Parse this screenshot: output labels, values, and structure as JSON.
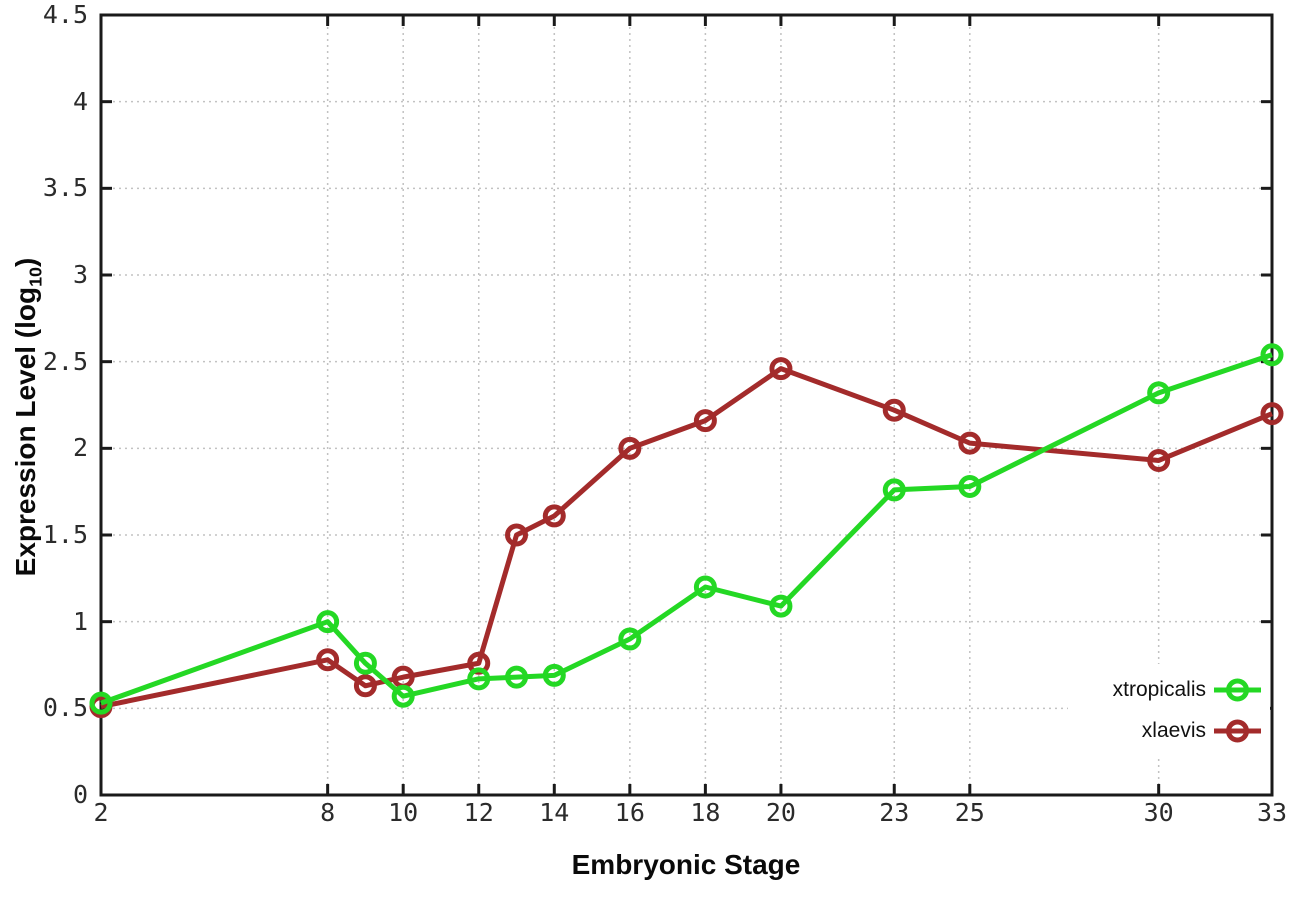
{
  "labels": {
    "ylabel_main": "Expression Level (log",
    "ylabel_sub": "10",
    "ylabel_close": ")"
  },
  "chart_data": {
    "type": "line",
    "title": "",
    "xlabel": "Embryonic Stage",
    "ylabel": "Expression Level (log10)",
    "x": [
      2,
      8,
      9,
      10,
      12,
      13,
      14,
      16,
      18,
      20,
      23,
      25,
      30,
      33
    ],
    "series": [
      {
        "name": "xtropicalis",
        "color": "#24d824",
        "marker": "open-circle",
        "values": [
          0.53,
          1.0,
          0.76,
          0.57,
          0.67,
          0.68,
          0.69,
          0.9,
          1.2,
          1.09,
          1.76,
          1.78,
          2.32,
          2.54
        ]
      },
      {
        "name": "xlaevis",
        "color": "#a32b2b",
        "marker": "open-circle",
        "values": [
          0.51,
          0.78,
          0.63,
          0.68,
          0.76,
          1.5,
          1.61,
          2.0,
          2.16,
          2.46,
          2.22,
          2.03,
          1.93,
          2.2
        ]
      }
    ],
    "xlim": [
      2,
      33
    ],
    "ylim": [
      0,
      4.5
    ],
    "xticks": [
      2,
      8,
      10,
      12,
      14,
      16,
      18,
      20,
      23,
      25,
      30,
      33
    ],
    "yticks": [
      0,
      0.5,
      1,
      1.5,
      2,
      2.5,
      3,
      3.5,
      4,
      4.5
    ],
    "ytick_labels": [
      "0",
      "0.5",
      "1",
      "1.5",
      "2",
      "2.5",
      "3",
      "3.5",
      "4",
      "4.5"
    ],
    "grid": true,
    "grid_style": "dotted",
    "legend_position": "inside-bottom-right",
    "border_color": "#1a1a1a",
    "grid_color": "#c2c2c2",
    "background": "#ffffff"
  }
}
